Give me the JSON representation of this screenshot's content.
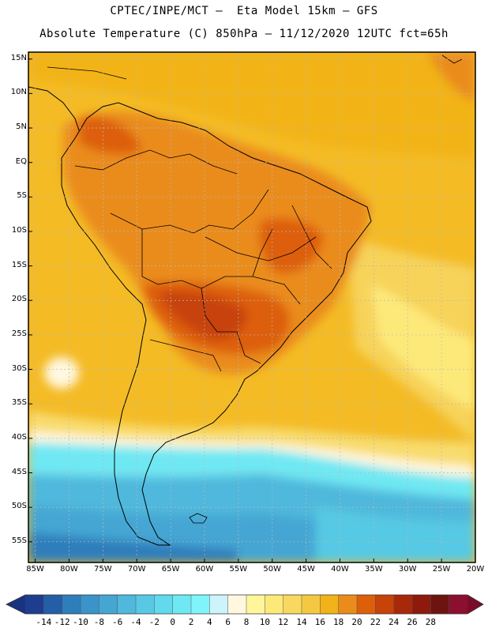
{
  "title": {
    "line1": "CPTEC/INPE/MCT –  Eta Model 15km – GFS",
    "line2": "Absolute Temperature (C) 850hPa – 11/12/2020 12UTC fct=65h"
  },
  "map": {
    "lat_ticks": [
      "15N",
      "10N",
      "5N",
      "EQ",
      "5S",
      "10S",
      "15S",
      "20S",
      "25S",
      "30S",
      "35S",
      "40S",
      "45S",
      "50S",
      "55S"
    ],
    "lon_ticks": [
      "85W",
      "80W",
      "75W",
      "70W",
      "65W",
      "60W",
      "55W",
      "50W",
      "45W",
      "40W",
      "35W",
      "30W",
      "25W",
      "20W"
    ],
    "lat_range": [
      -58,
      16
    ],
    "lon_range": [
      -86,
      -20
    ]
  },
  "colorbar": {
    "labels": [
      "-14",
      "-12",
      "-10",
      "-8",
      "-6",
      "-4",
      "-2",
      "0",
      "2",
      "4",
      "6",
      "8",
      "10",
      "12",
      "14",
      "16",
      "18",
      "20",
      "22",
      "24",
      "26",
      "28"
    ],
    "colors": [
      "#1f3d8f",
      "#245ea6",
      "#2f7ebc",
      "#3a93c9",
      "#45a6d3",
      "#4fb8dc",
      "#57c9e4",
      "#62d9ec",
      "#6fe8f3",
      "#80f4fb",
      "#cdf3fb",
      "#fff7df",
      "#fff59a",
      "#fde97a",
      "#f8d85f",
      "#f5c842",
      "#f2b318",
      "#ea8c1b",
      "#dd5f0a",
      "#c74307",
      "#a8290a",
      "#8d1a0c",
      "#6e1410",
      "#8b0f2f"
    ],
    "min_color": "#1a3380",
    "max_color": "#7a0c29"
  }
}
